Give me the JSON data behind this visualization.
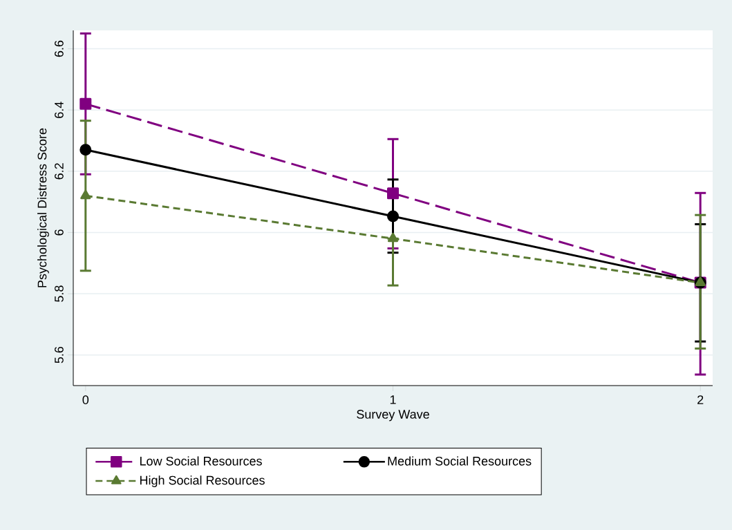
{
  "chart_data": {
    "type": "line",
    "xlabel": "Survey Wave",
    "ylabel": "Psychological Distress Score",
    "x": [
      0,
      1,
      2
    ],
    "xlim": [
      -0.04,
      2.04
    ],
    "xticks": [
      0,
      1,
      2
    ],
    "ylim": [
      5.5,
      6.66
    ],
    "yticks": [
      5.6,
      5.8,
      6,
      6.2,
      6.4,
      6.6
    ],
    "grid": "y",
    "legend": "bottom",
    "series": [
      {
        "name": "Low Social Resources",
        "color": "#800080",
        "marker": "square",
        "line_style": "dashed",
        "values": [
          6.42,
          6.128,
          5.836
        ],
        "errors": [
          [
            6.19,
            6.65
          ],
          [
            5.948,
            6.305
          ],
          [
            5.536,
            6.129
          ]
        ]
      },
      {
        "name": "Medium Social Resources",
        "color": "#000000",
        "marker": "circle",
        "line_style": "solid",
        "values": [
          6.27,
          6.053,
          5.836
        ],
        "errors": [
          null,
          [
            5.934,
            6.173
          ],
          [
            5.644,
            6.027
          ]
        ]
      },
      {
        "name": "High Social Resources",
        "color": "#5a7a32",
        "marker": "triangle",
        "line_style": "dotted",
        "values": [
          6.12,
          5.98,
          5.836
        ],
        "errors": [
          [
            5.875,
            6.365
          ],
          [
            5.827,
            5.98
          ],
          [
            5.621,
            6.057
          ]
        ]
      }
    ]
  }
}
